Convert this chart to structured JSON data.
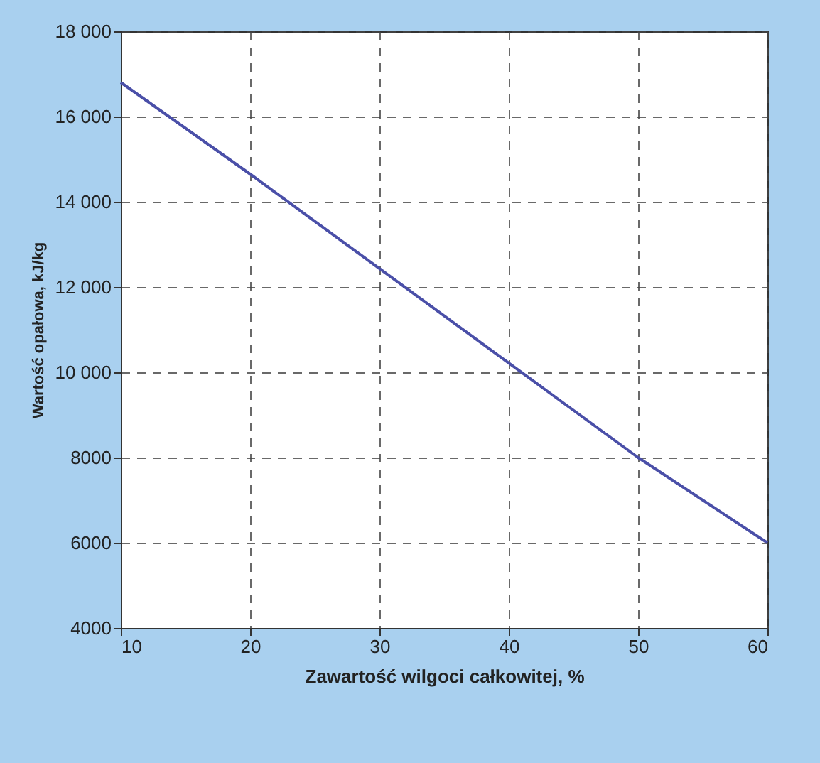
{
  "chart_data": {
    "type": "line",
    "xlabel": "Zawartość wilgoci całkowitej, %",
    "ylabel": "Wartość opałowa, kJ/kg",
    "x": [
      10,
      20,
      50,
      60
    ],
    "series": [
      {
        "color": "#4a4fa8",
        "values": [
          16800,
          14650,
          8000,
          6000
        ]
      }
    ],
    "xlim": [
      10,
      60
    ],
    "xticks": [
      10,
      20,
      30,
      40,
      50,
      60
    ],
    "ylim": [
      4000,
      18000
    ],
    "yticks": [
      4000,
      6000,
      8000,
      {
        "value": 10000,
        "label": "10 000"
      },
      {
        "value": 12000,
        "label": "12 000"
      },
      {
        "value": 14000,
        "label": "14 000"
      },
      {
        "value": 16000,
        "label": "16 000"
      },
      {
        "value": 18000,
        "label": "18 000"
      }
    ],
    "grid": true,
    "line_style": "solid",
    "marker": "none"
  }
}
